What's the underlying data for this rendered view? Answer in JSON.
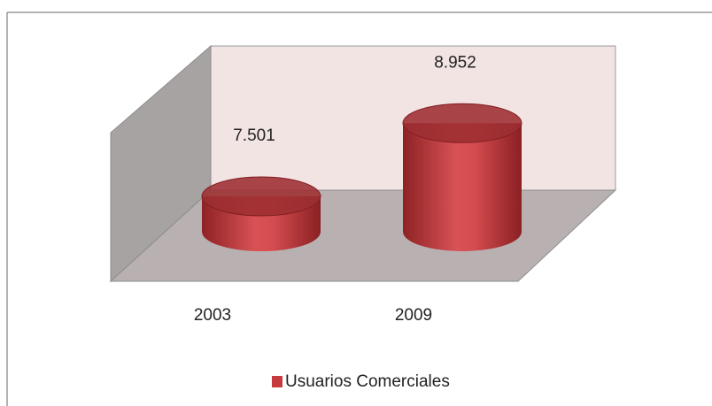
{
  "chart_data": {
    "type": "bar",
    "categories": [
      "2003",
      "2009"
    ],
    "series": [
      {
        "name": "Usuarios Comerciales",
        "color": "#c63b3e",
        "values": [
          7501,
          8952
        ],
        "value_labels": [
          "7.501",
          "8.952"
        ]
      }
    ],
    "ylim": [
      6800,
      9500
    ]
  }
}
